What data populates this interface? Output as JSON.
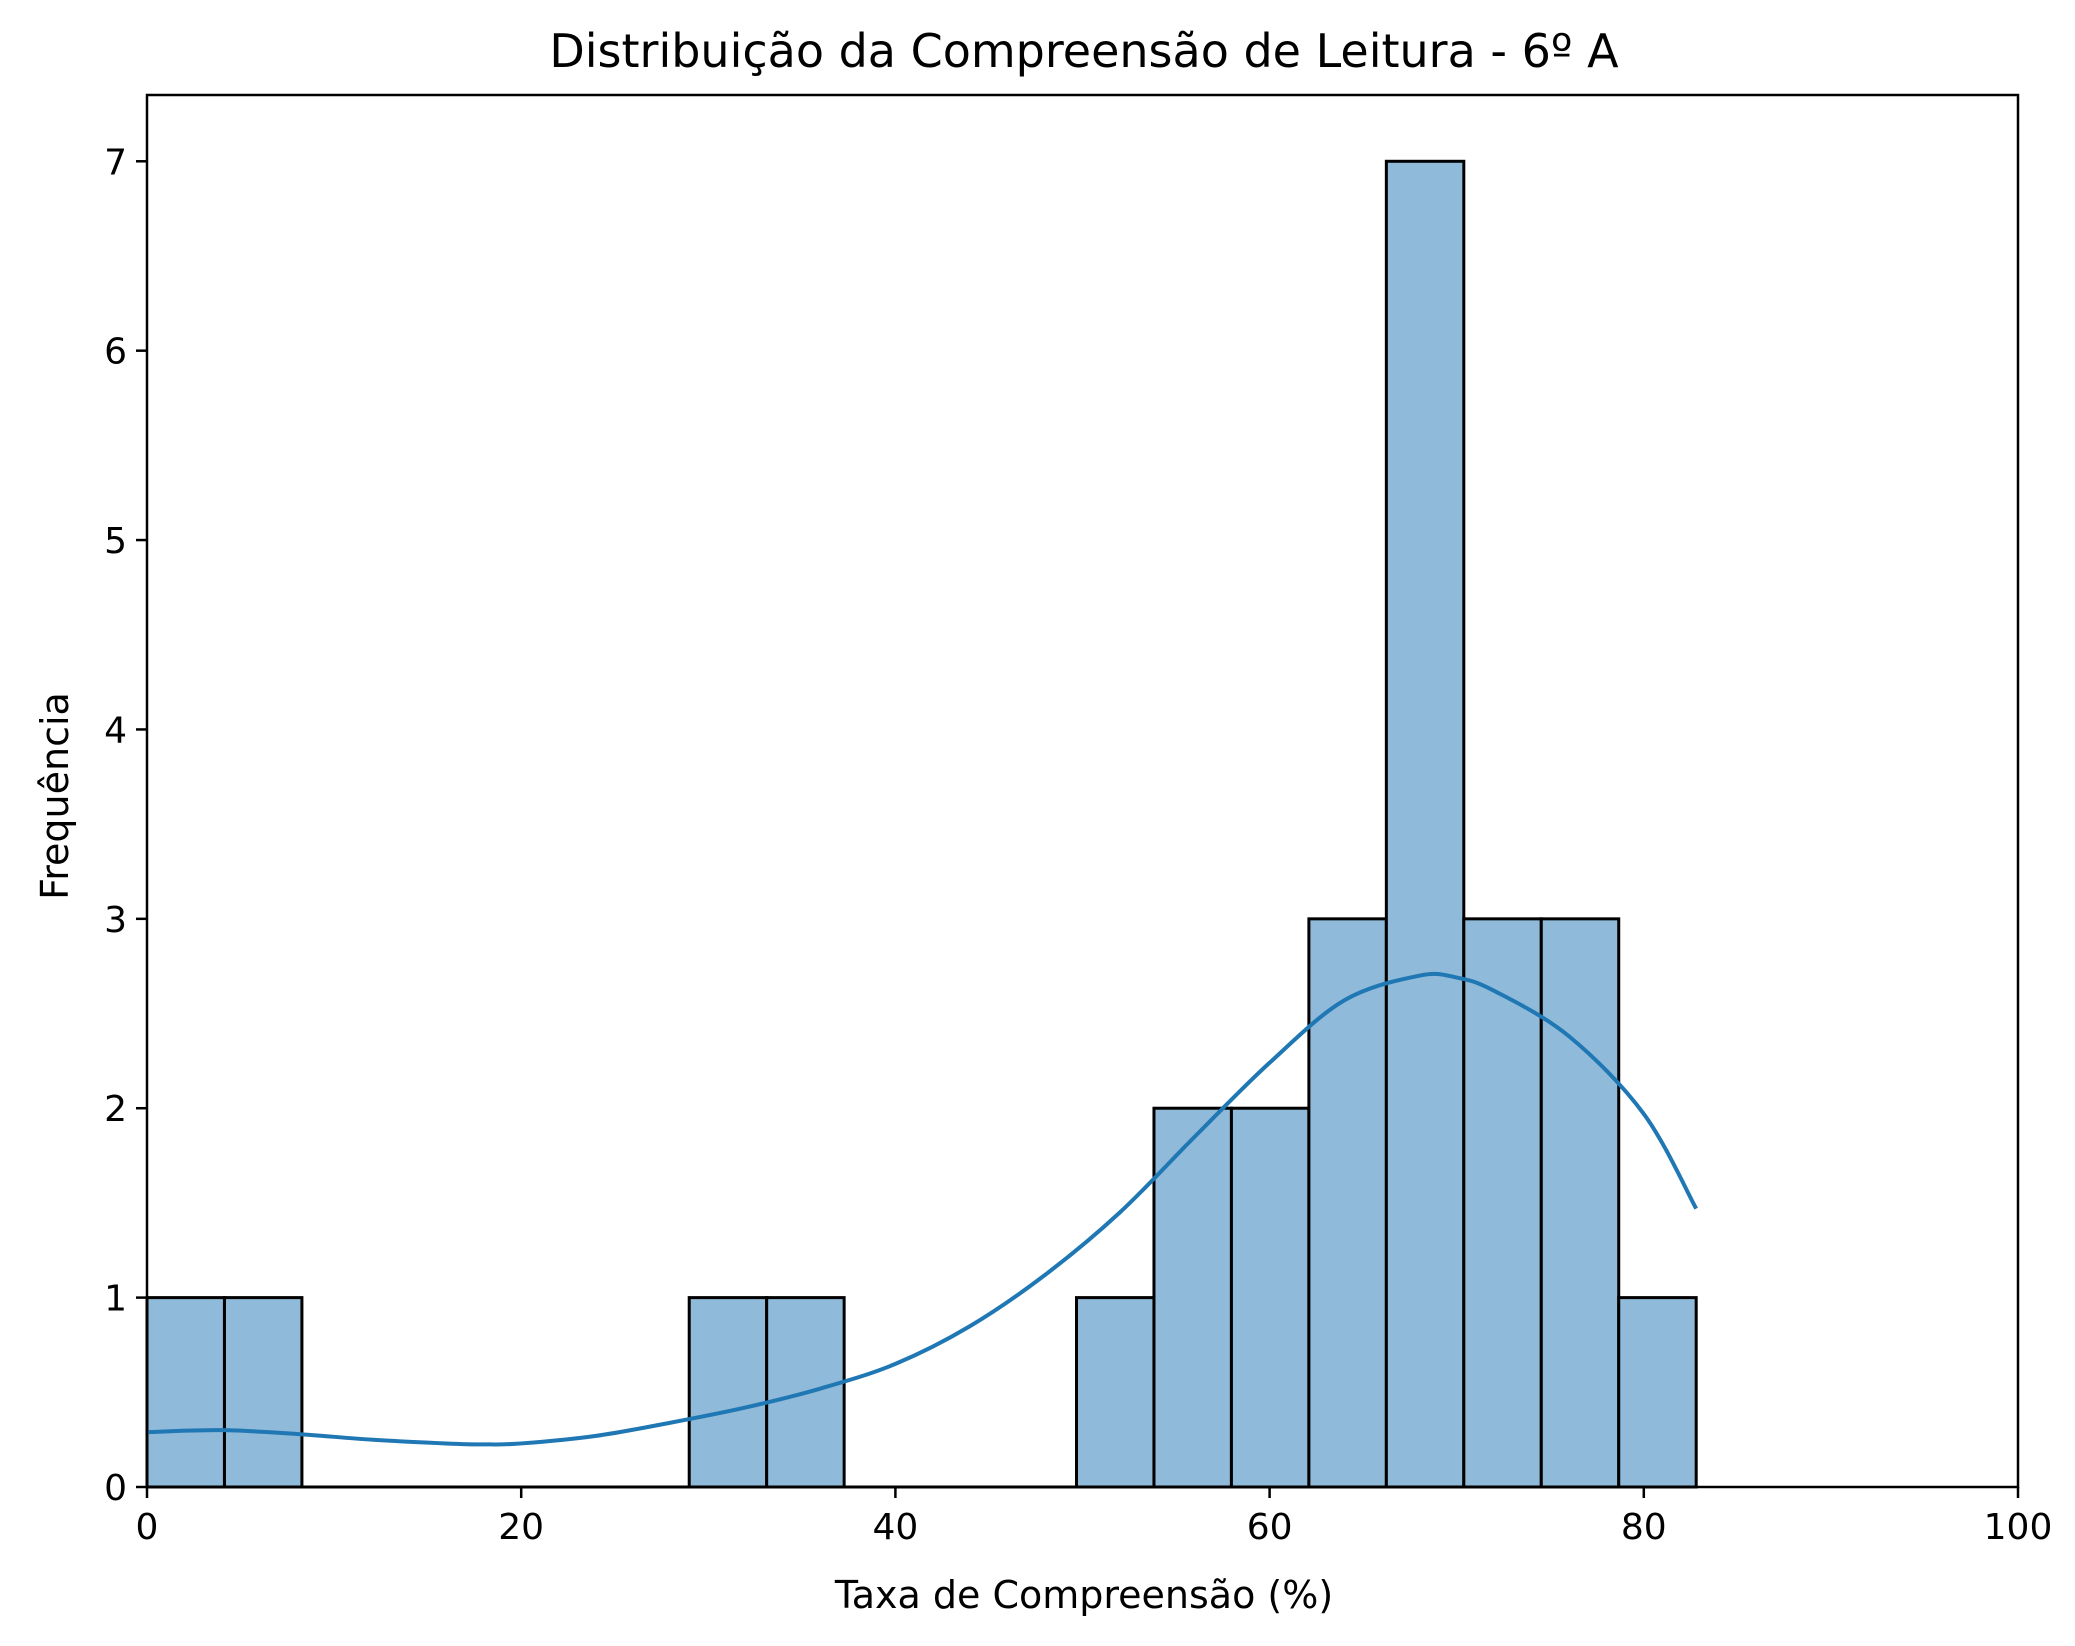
{
  "chart_data": {
    "type": "bar",
    "subtype": "histogram",
    "title": "Distribuição da Compreensão de Leitura - 6º A",
    "xlabel": "Taxa de Compreensão (%)",
    "ylabel": "Frequência",
    "xlim": [
      0,
      100
    ],
    "ylim": [
      0,
      7.35
    ],
    "xticks": [
      0,
      20,
      40,
      60,
      80,
      100
    ],
    "yticks": [
      0,
      1,
      2,
      3,
      4,
      5,
      6,
      7
    ],
    "grid": false,
    "legend": "none",
    "bins": [
      {
        "x0": 0.0,
        "x1": 4.14,
        "count": 1
      },
      {
        "x0": 4.14,
        "x1": 8.28,
        "count": 1
      },
      {
        "x0": 8.28,
        "x1": 12.42,
        "count": 0
      },
      {
        "x0": 12.42,
        "x1": 16.56,
        "count": 0
      },
      {
        "x0": 16.56,
        "x1": 20.7,
        "count": 0
      },
      {
        "x0": 20.7,
        "x1": 24.84,
        "count": 0
      },
      {
        "x0": 24.84,
        "x1": 28.98,
        "count": 0
      },
      {
        "x0": 28.98,
        "x1": 33.12,
        "count": 1
      },
      {
        "x0": 33.12,
        "x1": 37.26,
        "count": 1
      },
      {
        "x0": 37.26,
        "x1": 41.4,
        "count": 0
      },
      {
        "x0": 41.4,
        "x1": 45.54,
        "count": 0
      },
      {
        "x0": 45.54,
        "x1": 49.68,
        "count": 0
      },
      {
        "x0": 49.68,
        "x1": 53.82,
        "count": 1
      },
      {
        "x0": 53.82,
        "x1": 57.96,
        "count": 2
      },
      {
        "x0": 57.96,
        "x1": 62.1,
        "count": 2
      },
      {
        "x0": 62.1,
        "x1": 66.24,
        "count": 3
      },
      {
        "x0": 66.24,
        "x1": 70.38,
        "count": 7
      },
      {
        "x0": 70.38,
        "x1": 74.52,
        "count": 3
      },
      {
        "x0": 74.52,
        "x1": 78.66,
        "count": 3
      },
      {
        "x0": 78.66,
        "x1": 82.8,
        "count": 1
      }
    ],
    "kde": {
      "x": [
        0,
        4,
        8,
        12,
        16,
        18,
        20,
        24,
        28,
        32,
        36,
        40,
        44,
        48,
        52,
        56,
        60,
        64,
        68,
        70,
        72,
        76,
        80,
        82.8
      ],
      "y": [
        0.29,
        0.3,
        0.28,
        0.25,
        0.23,
        0.225,
        0.23,
        0.27,
        0.34,
        0.42,
        0.52,
        0.65,
        0.85,
        1.12,
        1.45,
        1.85,
        2.24,
        2.57,
        2.7,
        2.69,
        2.62,
        2.38,
        1.97,
        1.47
      ]
    },
    "colors": {
      "bar_fill": "#8fbad9",
      "bar_edge": "#000000",
      "kde_line": "#1f77b4"
    }
  }
}
